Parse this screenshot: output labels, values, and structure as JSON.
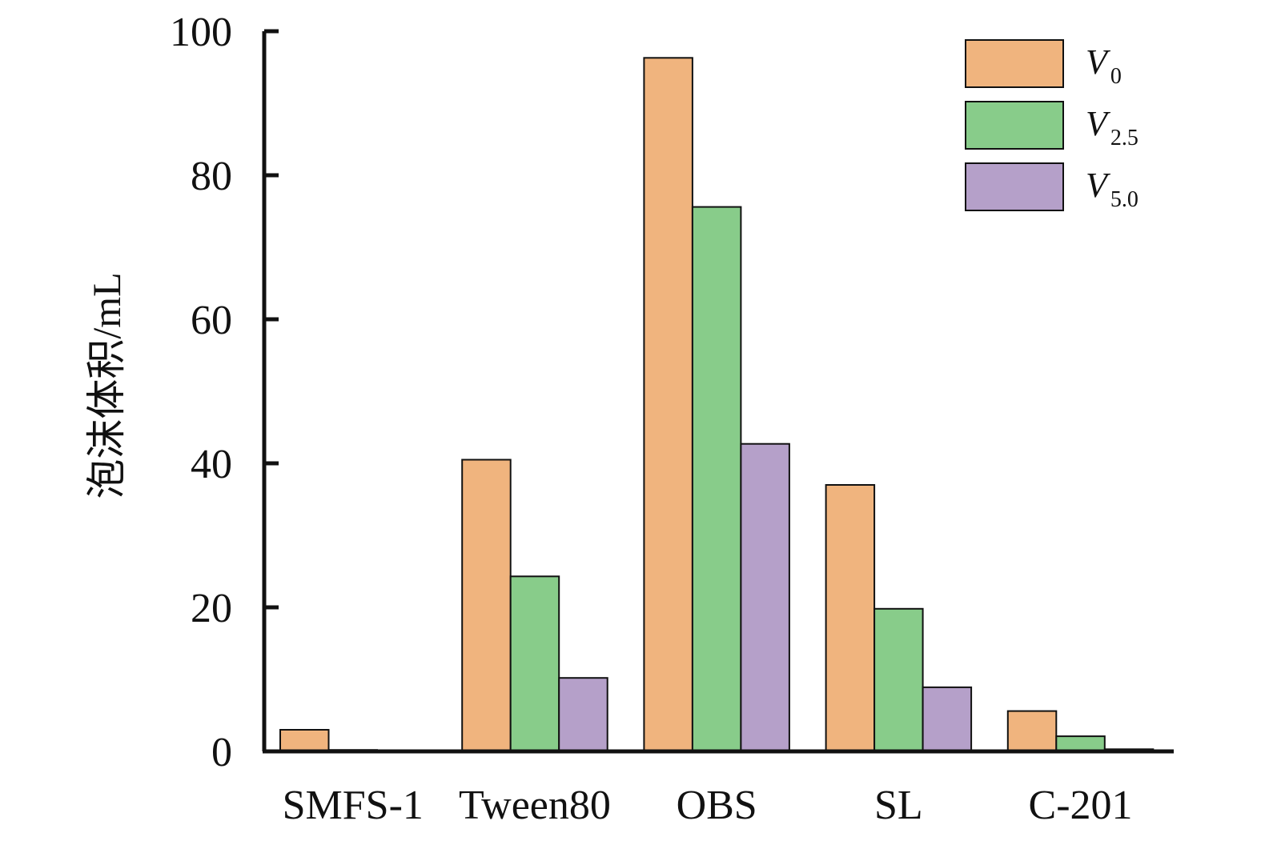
{
  "chart_data": {
    "type": "bar",
    "title": "",
    "xlabel": "",
    "ylabel": "泡沫体积/mL",
    "ylim": [
      0,
      100
    ],
    "yticks": [
      0,
      20,
      40,
      60,
      80,
      100
    ],
    "grid": false,
    "legend_position": "top-right",
    "categories": [
      "SMFS-1",
      "Tween80",
      "OBS",
      "SL",
      "C-201"
    ],
    "series": [
      {
        "name": "V0",
        "label_main": "V",
        "label_sub": "0",
        "color": "#f0b47e",
        "values": [
          3.0,
          40.5,
          96.3,
          37.0,
          5.6
        ]
      },
      {
        "name": "V2.5",
        "label_main": "V",
        "label_sub": "2.5",
        "color": "#88cc8a",
        "values": [
          0.2,
          24.3,
          75.6,
          19.8,
          2.1
        ]
      },
      {
        "name": "V5.0",
        "label_main": "V",
        "label_sub": "5.0",
        "color": "#b5a0c9",
        "values": [
          0.0,
          10.2,
          42.7,
          8.9,
          0.3
        ]
      }
    ]
  }
}
